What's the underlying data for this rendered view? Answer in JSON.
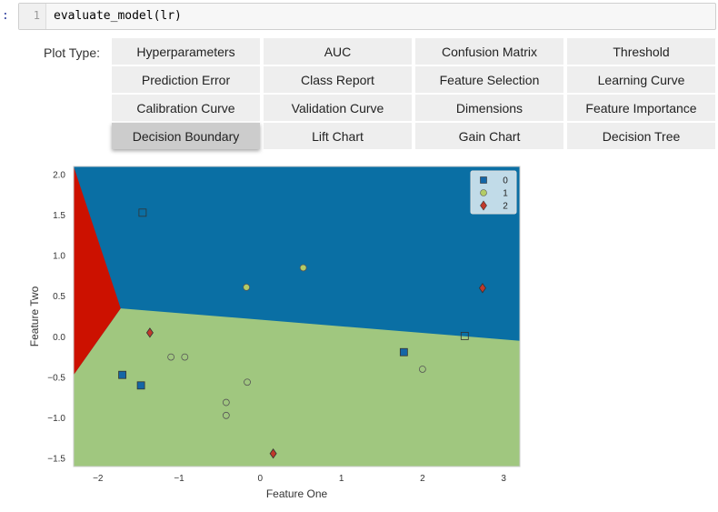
{
  "cell": {
    "prompt": ":",
    "line_number": "1",
    "code": "evaluate_model(lr)"
  },
  "widget": {
    "label": "Plot Type:",
    "options": [
      "Hyperparameters",
      "AUC",
      "Confusion Matrix",
      "Threshold",
      "Prediction Error",
      "Class Report",
      "Feature Selection",
      "Learning Curve",
      "Calibration Curve",
      "Validation Curve",
      "Dimensions",
      "Feature Importance",
      "Decision Boundary",
      "Lift Chart",
      "Gain Chart",
      "Decision Tree"
    ],
    "selected": "Decision Boundary"
  },
  "chart_data": {
    "type": "scatter",
    "title": "",
    "xlabel": "Feature One",
    "ylabel": "Feature Two",
    "xlim": [
      -2.3,
      3.2
    ],
    "ylim": [
      -1.6,
      2.1
    ],
    "xticks": [
      "−2",
      "−1",
      "0",
      "1",
      "2",
      "3"
    ],
    "xtick_values": [
      -2,
      -1,
      0,
      1,
      2,
      3
    ],
    "yticks": [
      "2.0",
      "1.5",
      "1.0",
      "0.5",
      "0.0",
      "−0.5",
      "−1.0",
      "−1.5"
    ],
    "ytick_values": [
      2.0,
      1.5,
      1.0,
      0.5,
      0.0,
      -0.5,
      -1.0,
      -1.5
    ],
    "grid": false,
    "legend_position": "top-right",
    "region_colors": {
      "0": "#0a6fa4",
      "1": "#a0c77f",
      "2": "#cc1100"
    },
    "series": [
      {
        "name": "0",
        "marker": "square",
        "color": "#1466a6",
        "train": [
          [
            -1.7,
            -0.47
          ],
          [
            -1.47,
            -0.6
          ],
          [
            1.77,
            -0.19
          ]
        ],
        "test": [
          [
            -1.45,
            1.53
          ],
          [
            2.52,
            0.01
          ]
        ]
      },
      {
        "name": "1",
        "marker": "circle",
        "color": "#b3cc66",
        "train": [
          [
            -0.17,
            0.61
          ],
          [
            0.53,
            0.85
          ],
          [
            2.0,
            -0.4
          ],
          [
            -0.16,
            -0.56
          ],
          [
            -0.42,
            -0.81
          ],
          [
            -0.42,
            -0.97
          ],
          [
            -1.1,
            -0.25
          ],
          [
            -0.93,
            -0.25
          ]
        ],
        "test": []
      },
      {
        "name": "2",
        "marker": "diamond",
        "color": "#c0392b",
        "train": [
          [
            -1.36,
            0.05
          ],
          [
            0.16,
            -1.44
          ],
          [
            2.74,
            0.6
          ]
        ],
        "test": []
      }
    ],
    "boundary_0_1": [
      [
        -1.72,
        0.35
      ],
      [
        3.2,
        -0.05
      ]
    ],
    "boundary_2": [
      [
        -2.3,
        2.1
      ],
      [
        -1.72,
        0.35
      ],
      [
        -2.3,
        -0.47
      ]
    ]
  }
}
